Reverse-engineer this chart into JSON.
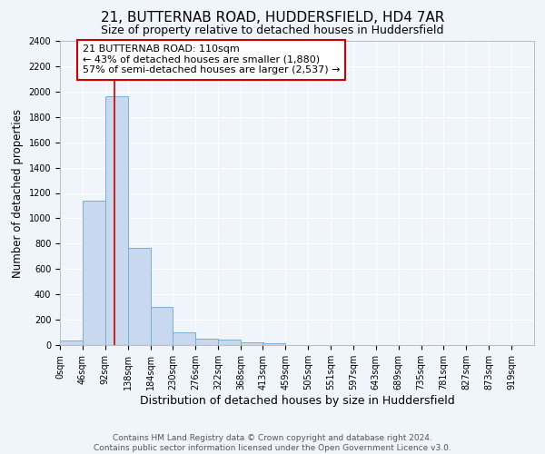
{
  "title": "21, BUTTERNAB ROAD, HUDDERSFIELD, HD4 7AR",
  "subtitle": "Size of property relative to detached houses in Huddersfield",
  "xlabel": "Distribution of detached houses by size in Huddersfield",
  "ylabel": "Number of detached properties",
  "bin_edges": [
    0,
    46,
    92,
    138,
    184,
    230,
    276,
    322,
    368,
    413,
    459,
    505,
    551,
    597,
    643,
    689,
    735,
    781,
    827,
    873,
    919
  ],
  "bar_heights": [
    35,
    1140,
    1960,
    770,
    300,
    100,
    50,
    40,
    25,
    15,
    0,
    0,
    0,
    0,
    0,
    0,
    0,
    0,
    0,
    0
  ],
  "bar_color": "#c8d8ee",
  "bar_edgecolor": "#7bafd4",
  "property_size": 110,
  "red_line_color": "#cc0000",
  "ylim": [
    0,
    2400
  ],
  "yticks": [
    0,
    200,
    400,
    600,
    800,
    1000,
    1200,
    1400,
    1600,
    1800,
    2000,
    2200,
    2400
  ],
  "xlim_max": 965,
  "annotation_text": "21 BUTTERNAB ROAD: 110sqm\n← 43% of detached houses are smaller (1,880)\n57% of semi-detached houses are larger (2,537) →",
  "annotation_box_color": "#ffffff",
  "annotation_box_edgecolor": "#cc0000",
  "footer_line1": "Contains HM Land Registry data © Crown copyright and database right 2024.",
  "footer_line2": "Contains public sector information licensed under the Open Government Licence v3.0.",
  "background_color": "#f0f4fb",
  "plot_bg_color": "#f0f4fb",
  "grid_color": "#ffffff",
  "title_fontsize": 11,
  "subtitle_fontsize": 9,
  "xlabel_fontsize": 9,
  "ylabel_fontsize": 8.5,
  "tick_fontsize": 7,
  "annotation_fontsize": 8,
  "footer_fontsize": 6.5
}
